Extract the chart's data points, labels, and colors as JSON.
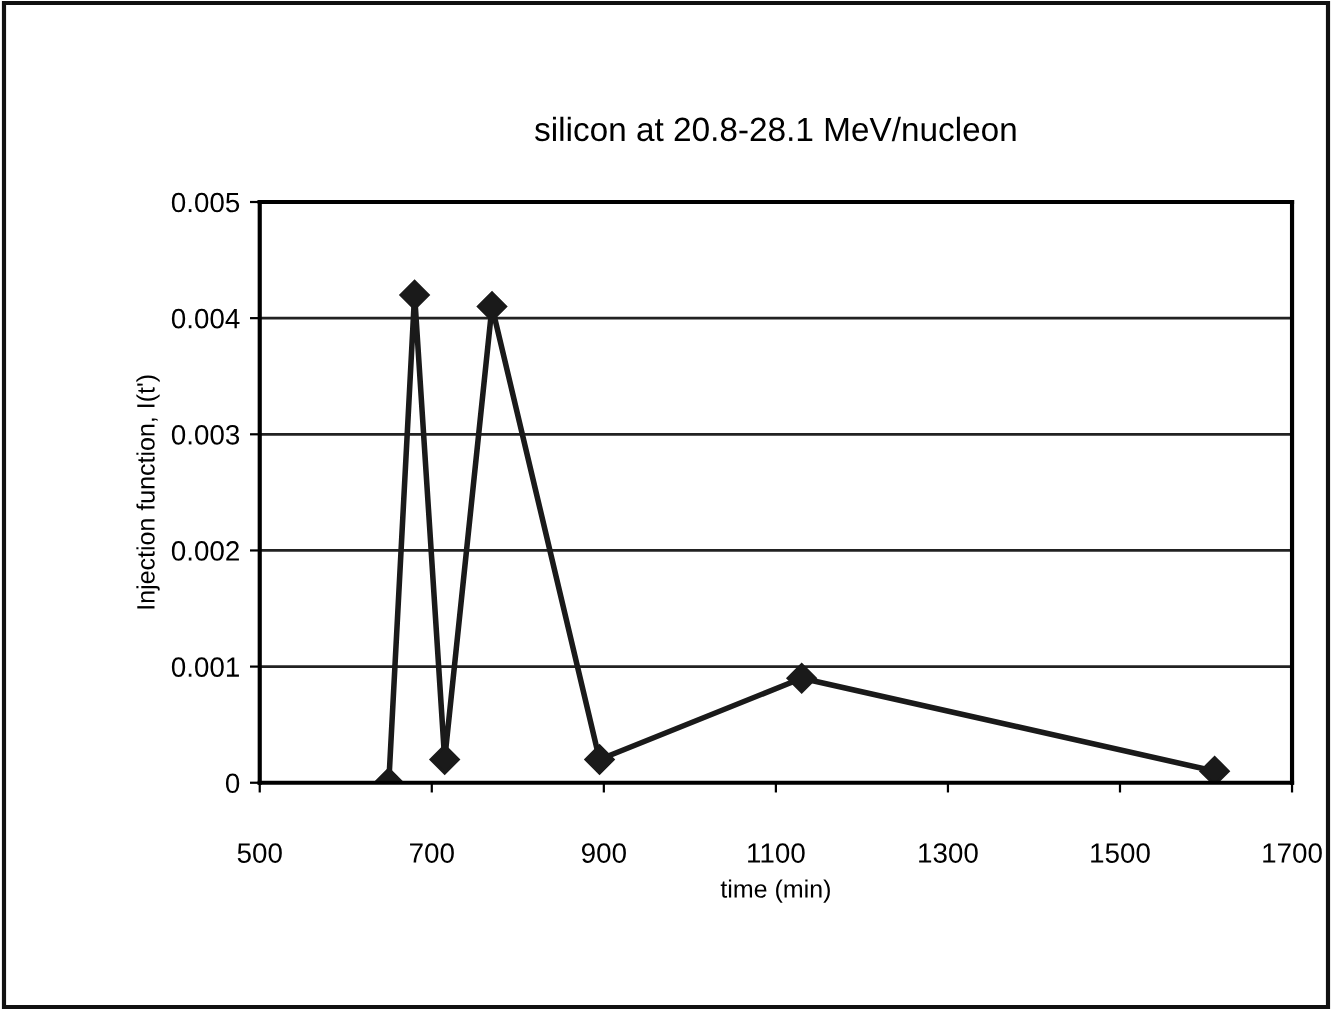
{
  "chart_data": {
    "type": "line",
    "title": "silicon at 20.8-28.1 MeV/nucleon",
    "xlabel": "time (min)",
    "ylabel": "Injection function, I(t')",
    "x": [
      650,
      680,
      715,
      770,
      895,
      1130,
      1610
    ],
    "series": [
      {
        "color": "#1a1a1a",
        "values": [
          0,
          0.0042,
          0.0002,
          0.0041,
          0.0002,
          0.0009,
          0.0001
        ]
      }
    ],
    "xlim": [
      500,
      1700
    ],
    "xticks": [
      500,
      700,
      900,
      1100,
      1300,
      1500,
      1700
    ],
    "ylim": [
      0,
      0.005
    ],
    "yticks": [
      0,
      0.001,
      0.002,
      0.003,
      0.004,
      0.005
    ],
    "grid": "y",
    "marker": "diamond",
    "line_style": "solid",
    "legend": false
  }
}
